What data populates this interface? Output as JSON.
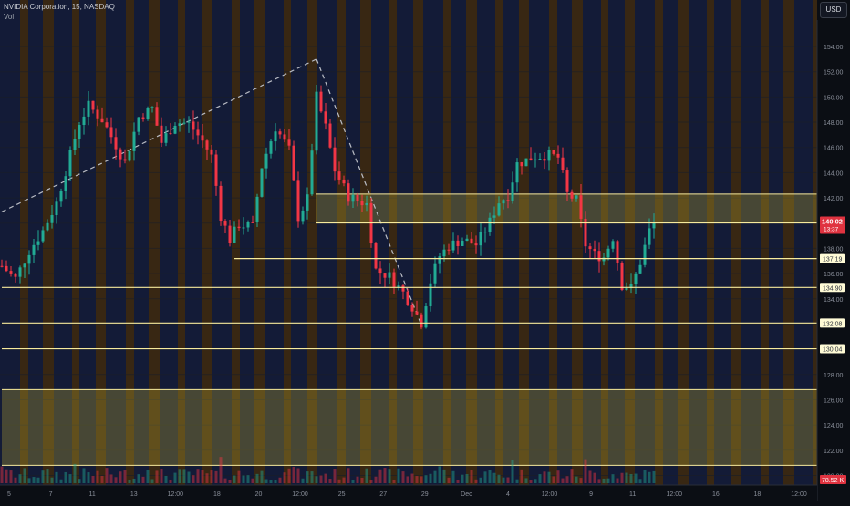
{
  "header": {
    "title": "NVIDIA Corporation, 15, NASDAQ",
    "vol_label": "Vol",
    "currency": "USD"
  },
  "chart_data": {
    "type": "candlestick",
    "ylim": [
      119.6,
      157.4
    ],
    "y_ticks": [
      120,
      122,
      124,
      126,
      128,
      130,
      132,
      134,
      136,
      138,
      140,
      142,
      144,
      146,
      148,
      150,
      152,
      154
    ],
    "x_ticks": [
      "5",
      "7",
      "11",
      "13",
      "12:00",
      "18",
      "20",
      "12:00",
      "25",
      "27",
      "29",
      "Dec",
      "4",
      "12:00",
      "9",
      "11",
      "12:00",
      "16",
      "18",
      "12:00"
    ],
    "price_path": [
      [
        0,
        136.6
      ],
      [
        3,
        135.6
      ],
      [
        6,
        137.8
      ],
      [
        9,
        139.4
      ],
      [
        12,
        141.6
      ],
      [
        15,
        145.4
      ],
      [
        17,
        148.0
      ],
      [
        19,
        149.3
      ],
      [
        22,
        148.2
      ],
      [
        25,
        146.2
      ],
      [
        27,
        144.8
      ],
      [
        30,
        148.4
      ],
      [
        33,
        149.1
      ],
      [
        35,
        146.4
      ],
      [
        38,
        148.0
      ],
      [
        41,
        147.9
      ],
      [
        44,
        146.5
      ],
      [
        46,
        145.3
      ],
      [
        48,
        140.6
      ],
      [
        50,
        138.7
      ],
      [
        52,
        139.9
      ],
      [
        55,
        139.7
      ],
      [
        57,
        144.5
      ],
      [
        60,
        147.6
      ],
      [
        63,
        145.8
      ],
      [
        65,
        140.5
      ],
      [
        67,
        141.9
      ],
      [
        69,
        150.0
      ],
      [
        71,
        147.6
      ],
      [
        73,
        144.2
      ],
      [
        76,
        142.1
      ],
      [
        78,
        141.8
      ],
      [
        80,
        141.5
      ],
      [
        82,
        136.3
      ],
      [
        85,
        135.8
      ],
      [
        88,
        134.5
      ],
      [
        90,
        133.4
      ],
      [
        92,
        132.1
      ],
      [
        94,
        135.4
      ],
      [
        96,
        137.4
      ],
      [
        98,
        138.2
      ],
      [
        101,
        138.7
      ],
      [
        104,
        138.3
      ],
      [
        107,
        140.1
      ],
      [
        109,
        141.7
      ],
      [
        111,
        142.2
      ],
      [
        113,
        144.7
      ],
      [
        115,
        145.0
      ],
      [
        117,
        145.3
      ],
      [
        120,
        145.4
      ],
      [
        122,
        145.2
      ],
      [
        124,
        142.3
      ],
      [
        126,
        141.8
      ],
      [
        128,
        138.3
      ],
      [
        130,
        137.5
      ],
      [
        132,
        137.3
      ],
      [
        134,
        138.9
      ],
      [
        136,
        135.1
      ],
      [
        138,
        134.9
      ],
      [
        140,
        136.9
      ],
      [
        142,
        139.4
      ],
      [
        143,
        140.02
      ]
    ],
    "trend_lines": [
      {
        "points": [
          [
            0,
            140.9
          ],
          [
            69,
            153.0
          ]
        ],
        "style": "dashed"
      },
      {
        "points": [
          [
            69,
            153.0
          ],
          [
            92,
            131.9
          ]
        ],
        "style": "dashed"
      }
    ],
    "zones": [
      {
        "from": 140.02,
        "to": 142.3,
        "start": 69
      },
      {
        "from": 120.8,
        "to": 126.8,
        "start": 0
      }
    ],
    "levels": [
      {
        "value": 140.02,
        "start": 69,
        "label": "140.02"
      },
      {
        "value": 137.19,
        "start": 51,
        "label": "137.19"
      },
      {
        "value": 134.9,
        "start": 0,
        "label": "134.90"
      },
      {
        "value": 132.08,
        "start": 0,
        "label": "132.08"
      },
      {
        "value": 130.04,
        "start": 0,
        "label": "130.04"
      }
    ],
    "last_price": {
      "value": "140.02",
      "countdown": "13:37",
      "color": "#e03340"
    },
    "volume_tag": {
      "value": "78.52 K",
      "color": "#e03340"
    },
    "colors": {
      "up": "#22ab94",
      "down": "#f23645",
      "zone_fill": "#b8a531",
      "level_line": "#f7ea9c",
      "level_label_bg": "#fffbd6",
      "session_extended": "#f08c10",
      "session_regular": "#233272",
      "background": "#0b0e14",
      "grid": "#1a1e28"
    },
    "grid": true
  }
}
